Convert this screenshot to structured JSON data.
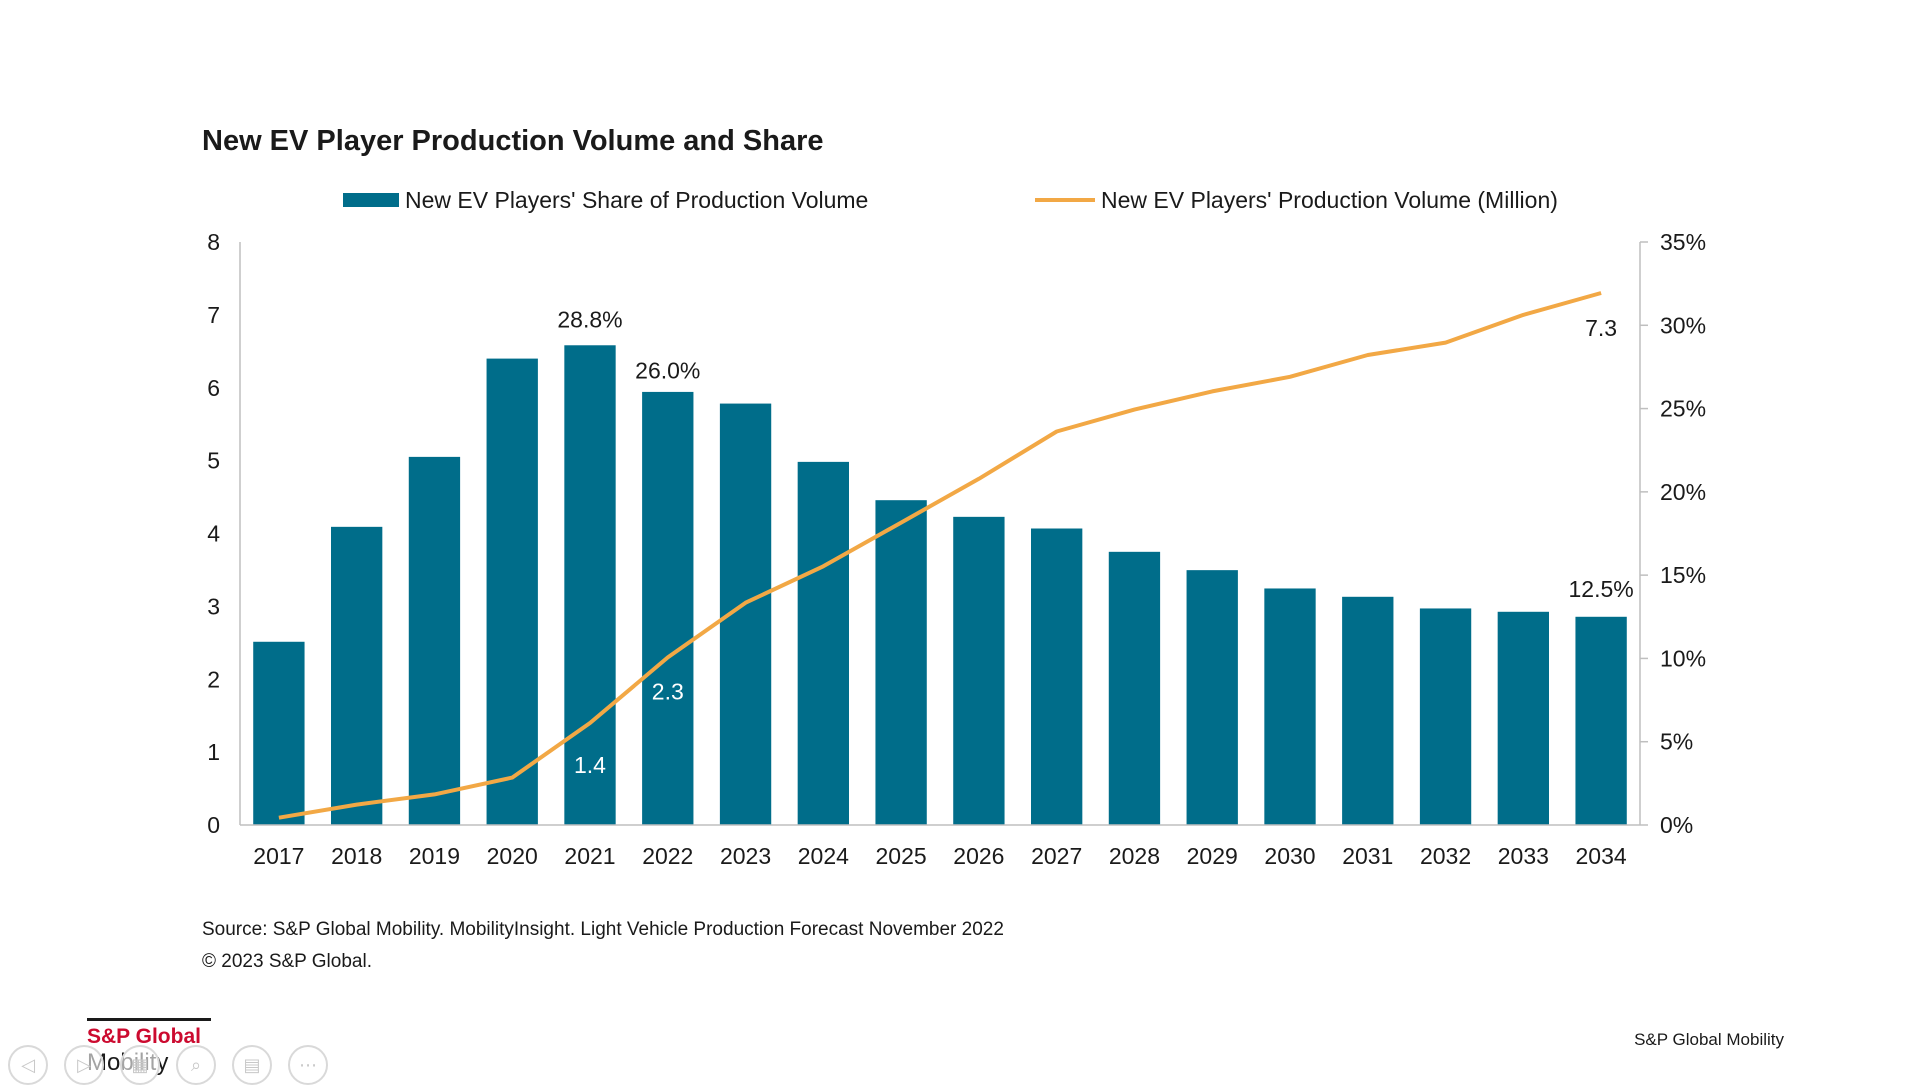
{
  "chart_data": {
    "type": "bar+line",
    "title": "New EV Player Production Volume and Share",
    "categories": [
      "2017",
      "2018",
      "2019",
      "2020",
      "2021",
      "2022",
      "2023",
      "2024",
      "2025",
      "2026",
      "2027",
      "2028",
      "2029",
      "2030",
      "2031",
      "2032",
      "2033",
      "2034"
    ],
    "series": [
      {
        "name": "New EV Players' Share of Production Volume",
        "type": "bar",
        "axis": "right",
        "color": "#006d8a",
        "values": [
          11.0,
          17.9,
          22.1,
          28.0,
          28.8,
          26.0,
          25.3,
          21.8,
          19.5,
          18.5,
          17.8,
          16.4,
          15.3,
          14.2,
          13.7,
          13.0,
          12.8,
          12.5
        ]
      },
      {
        "name": "New EV Players' Production Volume (Million)",
        "type": "line",
        "axis": "left",
        "color": "#f2a845",
        "values": [
          0.1,
          0.28,
          0.42,
          0.65,
          1.4,
          2.3,
          3.05,
          3.55,
          4.15,
          4.75,
          5.4,
          5.7,
          5.95,
          6.15,
          6.45,
          6.62,
          7.0,
          7.3
        ]
      }
    ],
    "y_left": {
      "ylim": [
        0,
        8
      ],
      "ticks": [
        "0",
        "1",
        "2",
        "3",
        "4",
        "5",
        "6",
        "7",
        "8"
      ]
    },
    "y_right": {
      "ylim": [
        0,
        35
      ],
      "ticks": [
        "0%",
        "5%",
        "10%",
        "15%",
        "20%",
        "25%",
        "30%",
        "35%"
      ]
    },
    "annotations": {
      "bars": [
        {
          "index": 4,
          "text": "28.8%"
        },
        {
          "index": 5,
          "text": "26.0%"
        },
        {
          "index": 17,
          "text": "12.5%"
        }
      ],
      "line": [
        {
          "index": 4,
          "text": "1.4"
        },
        {
          "index": 5,
          "text": "2.3"
        },
        {
          "index": 17,
          "text": "7.3"
        }
      ]
    },
    "legend_placement": "top",
    "grid": false
  },
  "footer": {
    "source": "Source: S&P Global Mobility. MobilityInsight. Light Vehicle Production Forecast November 2022",
    "copyright": "© 2023 S&P Global."
  },
  "logo": {
    "brand": "S&P Global",
    "sub": "Mobility"
  },
  "brand_right": "S&P Global Mobility",
  "controls": [
    {
      "name": "previous-icon",
      "glyph": "◁"
    },
    {
      "name": "next-icon",
      "glyph": "▷"
    },
    {
      "name": "slides-icon",
      "glyph": "▦"
    },
    {
      "name": "zoom-icon",
      "glyph": "⌕"
    },
    {
      "name": "subtitles-icon",
      "glyph": "▤"
    },
    {
      "name": "more-icon",
      "glyph": "⋯"
    }
  ]
}
